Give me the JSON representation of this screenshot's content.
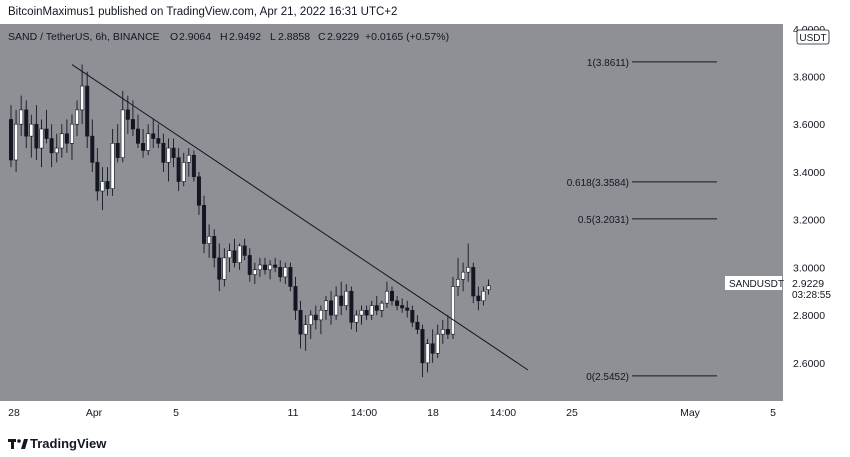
{
  "publish_line": "BitcoinMaximus1 published on TradingView.com, Apr 21, 2022 16:31 UTC+2",
  "footer_brand": "TradingView",
  "colors": {
    "plot_bg": "#8e9096",
    "scale_bg": "#ffffff",
    "candle_up": "#ffffff",
    "candle_down": "#131722",
    "line": "#131722"
  },
  "legend": {
    "symbol": "SAND / TetherUS, 6h, BINANCE",
    "o_label": "O",
    "o_value": "2.9064",
    "h_label": "H",
    "h_value": "2.9492",
    "l_label": "L",
    "l_value": "2.8858",
    "c_label": "C",
    "c_value": "2.9229",
    "change": "+0.0165 (+0.57%)"
  },
  "currency_badge": "USDT",
  "price_tag": {
    "symbol": "SANDUSDT",
    "price": "2.9229",
    "countdown": "03:28:55"
  },
  "chart_data": {
    "type": "candlestick",
    "x_tick_labels": [
      "28",
      "Apr",
      "5",
      "11",
      "14:00",
      "18",
      "14:00",
      "25",
      "May",
      "5"
    ],
    "y_tick_labels": [
      "4.0000",
      "3.8000",
      "3.6000",
      "3.4000",
      "3.2000",
      "3.0000",
      "2.8000",
      "2.6000"
    ],
    "y_ticks": [
      4.0,
      3.8,
      3.6,
      3.4,
      3.2,
      3.0,
      2.8,
      2.6
    ],
    "ylim": [
      2.44,
      4.02
    ],
    "last_price": 2.9229,
    "fib_levels": [
      {
        "label": "1(3.8611)",
        "value": 3.8611
      },
      {
        "label": "0.618(3.3584)",
        "value": 3.3584
      },
      {
        "label": "0.5(3.2031)",
        "value": 3.2031
      },
      {
        "label": "0(2.5452)",
        "value": 2.5452
      }
    ],
    "trendline": {
      "from": {
        "date": "Mar 31 2022",
        "price": 3.85
      },
      "to": {
        "date": "Apr 22 2022",
        "price": 2.57
      }
    },
    "candles": [
      {
        "o": 3.62,
        "h": 3.68,
        "l": 3.42,
        "c": 3.45
      },
      {
        "o": 3.45,
        "h": 3.66,
        "l": 3.4,
        "c": 3.6
      },
      {
        "o": 3.6,
        "h": 3.72,
        "l": 3.55,
        "c": 3.66
      },
      {
        "o": 3.66,
        "h": 3.7,
        "l": 3.5,
        "c": 3.55
      },
      {
        "o": 3.55,
        "h": 3.64,
        "l": 3.46,
        "c": 3.6
      },
      {
        "o": 3.6,
        "h": 3.68,
        "l": 3.45,
        "c": 3.5
      },
      {
        "o": 3.5,
        "h": 3.62,
        "l": 3.42,
        "c": 3.58
      },
      {
        "o": 3.58,
        "h": 3.66,
        "l": 3.52,
        "c": 3.54
      },
      {
        "o": 3.54,
        "h": 3.6,
        "l": 3.42,
        "c": 3.48
      },
      {
        "o": 3.48,
        "h": 3.56,
        "l": 3.44,
        "c": 3.5
      },
      {
        "o": 3.5,
        "h": 3.6,
        "l": 3.46,
        "c": 3.56
      },
      {
        "o": 3.56,
        "h": 3.62,
        "l": 3.48,
        "c": 3.52
      },
      {
        "o": 3.52,
        "h": 3.64,
        "l": 3.45,
        "c": 3.6
      },
      {
        "o": 3.6,
        "h": 3.7,
        "l": 3.55,
        "c": 3.66
      },
      {
        "o": 3.66,
        "h": 3.85,
        "l": 3.6,
        "c": 3.76
      },
      {
        "o": 3.76,
        "h": 3.82,
        "l": 3.5,
        "c": 3.55
      },
      {
        "o": 3.55,
        "h": 3.62,
        "l": 3.4,
        "c": 3.44
      },
      {
        "o": 3.44,
        "h": 3.5,
        "l": 3.28,
        "c": 3.32
      },
      {
        "o": 3.32,
        "h": 3.42,
        "l": 3.24,
        "c": 3.36
      },
      {
        "o": 3.36,
        "h": 3.42,
        "l": 3.3,
        "c": 3.33
      },
      {
        "o": 3.33,
        "h": 3.58,
        "l": 3.3,
        "c": 3.52
      },
      {
        "o": 3.52,
        "h": 3.6,
        "l": 3.44,
        "c": 3.46
      },
      {
        "o": 3.46,
        "h": 3.74,
        "l": 3.44,
        "c": 3.66
      },
      {
        "o": 3.66,
        "h": 3.72,
        "l": 3.56,
        "c": 3.62
      },
      {
        "o": 3.62,
        "h": 3.7,
        "l": 3.55,
        "c": 3.58
      },
      {
        "o": 3.58,
        "h": 3.64,
        "l": 3.5,
        "c": 3.52
      },
      {
        "o": 3.52,
        "h": 3.58,
        "l": 3.46,
        "c": 3.49
      },
      {
        "o": 3.49,
        "h": 3.6,
        "l": 3.47,
        "c": 3.56
      },
      {
        "o": 3.56,
        "h": 3.62,
        "l": 3.5,
        "c": 3.54
      },
      {
        "o": 3.54,
        "h": 3.6,
        "l": 3.5,
        "c": 3.52
      },
      {
        "o": 3.52,
        "h": 3.56,
        "l": 3.4,
        "c": 3.44
      },
      {
        "o": 3.44,
        "h": 3.54,
        "l": 3.36,
        "c": 3.5
      },
      {
        "o": 3.5,
        "h": 3.54,
        "l": 3.42,
        "c": 3.46
      },
      {
        "o": 3.46,
        "h": 3.5,
        "l": 3.32,
        "c": 3.36
      },
      {
        "o": 3.36,
        "h": 3.48,
        "l": 3.34,
        "c": 3.44
      },
      {
        "o": 3.44,
        "h": 3.5,
        "l": 3.38,
        "c": 3.47
      },
      {
        "o": 3.47,
        "h": 3.49,
        "l": 3.36,
        "c": 3.38
      },
      {
        "o": 3.38,
        "h": 3.4,
        "l": 3.22,
        "c": 3.26
      },
      {
        "o": 3.26,
        "h": 3.3,
        "l": 3.06,
        "c": 3.1
      },
      {
        "o": 3.1,
        "h": 3.18,
        "l": 3.04,
        "c": 3.13
      },
      {
        "o": 3.13,
        "h": 3.16,
        "l": 3.0,
        "c": 3.04
      },
      {
        "o": 3.04,
        "h": 3.1,
        "l": 2.9,
        "c": 2.95
      },
      {
        "o": 2.95,
        "h": 3.08,
        "l": 2.92,
        "c": 3.04
      },
      {
        "o": 3.04,
        "h": 3.1,
        "l": 2.98,
        "c": 3.07
      },
      {
        "o": 3.07,
        "h": 3.12,
        "l": 3.0,
        "c": 3.02
      },
      {
        "o": 3.02,
        "h": 3.1,
        "l": 2.99,
        "c": 3.09
      },
      {
        "o": 3.09,
        "h": 3.12,
        "l": 3.03,
        "c": 3.05
      },
      {
        "o": 3.05,
        "h": 3.08,
        "l": 2.94,
        "c": 2.97
      },
      {
        "o": 2.97,
        "h": 3.02,
        "l": 2.93,
        "c": 2.99
      },
      {
        "o": 2.99,
        "h": 3.04,
        "l": 2.96,
        "c": 3.01
      },
      {
        "o": 3.01,
        "h": 3.04,
        "l": 2.97,
        "c": 2.99
      },
      {
        "o": 2.99,
        "h": 3.03,
        "l": 2.95,
        "c": 3.01
      },
      {
        "o": 3.01,
        "h": 3.04,
        "l": 2.98,
        "c": 3.0
      },
      {
        "o": 3.0,
        "h": 3.03,
        "l": 2.94,
        "c": 2.96
      },
      {
        "o": 2.96,
        "h": 3.02,
        "l": 2.93,
        "c": 3.0
      },
      {
        "o": 3.0,
        "h": 3.02,
        "l": 2.9,
        "c": 2.92
      },
      {
        "o": 2.92,
        "h": 2.96,
        "l": 2.78,
        "c": 2.82
      },
      {
        "o": 2.82,
        "h": 2.86,
        "l": 2.66,
        "c": 2.72
      },
      {
        "o": 2.72,
        "h": 2.8,
        "l": 2.65,
        "c": 2.76
      },
      {
        "o": 2.76,
        "h": 2.82,
        "l": 2.7,
        "c": 2.8
      },
      {
        "o": 2.8,
        "h": 2.84,
        "l": 2.74,
        "c": 2.78
      },
      {
        "o": 2.78,
        "h": 2.84,
        "l": 2.72,
        "c": 2.82
      },
      {
        "o": 2.82,
        "h": 2.88,
        "l": 2.78,
        "c": 2.86
      },
      {
        "o": 2.86,
        "h": 2.9,
        "l": 2.76,
        "c": 2.8
      },
      {
        "o": 2.8,
        "h": 2.92,
        "l": 2.78,
        "c": 2.88
      },
      {
        "o": 2.88,
        "h": 2.94,
        "l": 2.8,
        "c": 2.84
      },
      {
        "o": 2.84,
        "h": 2.93,
        "l": 2.82,
        "c": 2.9
      },
      {
        "o": 2.9,
        "h": 2.92,
        "l": 2.74,
        "c": 2.77
      },
      {
        "o": 2.77,
        "h": 2.82,
        "l": 2.73,
        "c": 2.8
      },
      {
        "o": 2.8,
        "h": 2.84,
        "l": 2.76,
        "c": 2.82
      },
      {
        "o": 2.82,
        "h": 2.84,
        "l": 2.78,
        "c": 2.8
      },
      {
        "o": 2.8,
        "h": 2.86,
        "l": 2.78,
        "c": 2.84
      },
      {
        "o": 2.84,
        "h": 2.88,
        "l": 2.8,
        "c": 2.82
      },
      {
        "o": 2.82,
        "h": 2.86,
        "l": 2.79,
        "c": 2.85
      },
      {
        "o": 2.85,
        "h": 2.94,
        "l": 2.83,
        "c": 2.9
      },
      {
        "o": 2.9,
        "h": 2.92,
        "l": 2.84,
        "c": 2.86
      },
      {
        "o": 2.86,
        "h": 2.88,
        "l": 2.82,
        "c": 2.84
      },
      {
        "o": 2.84,
        "h": 2.87,
        "l": 2.81,
        "c": 2.83
      },
      {
        "o": 2.83,
        "h": 2.86,
        "l": 2.79,
        "c": 2.82
      },
      {
        "o": 2.82,
        "h": 2.84,
        "l": 2.75,
        "c": 2.77
      },
      {
        "o": 2.77,
        "h": 2.8,
        "l": 2.72,
        "c": 2.74
      },
      {
        "o": 2.74,
        "h": 2.76,
        "l": 2.54,
        "c": 2.6
      },
      {
        "o": 2.6,
        "h": 2.7,
        "l": 2.56,
        "c": 2.68
      },
      {
        "o": 2.68,
        "h": 2.74,
        "l": 2.6,
        "c": 2.64
      },
      {
        "o": 2.64,
        "h": 2.76,
        "l": 2.62,
        "c": 2.72
      },
      {
        "o": 2.72,
        "h": 2.78,
        "l": 2.68,
        "c": 2.74
      },
      {
        "o": 2.74,
        "h": 2.8,
        "l": 2.7,
        "c": 2.72
      },
      {
        "o": 2.72,
        "h": 2.96,
        "l": 2.7,
        "c": 2.92
      },
      {
        "o": 2.92,
        "h": 3.04,
        "l": 2.88,
        "c": 2.95
      },
      {
        "o": 2.95,
        "h": 3.02,
        "l": 2.9,
        "c": 2.98
      },
      {
        "o": 2.98,
        "h": 3.1,
        "l": 2.94,
        "c": 3.0
      },
      {
        "o": 3.0,
        "h": 3.02,
        "l": 2.85,
        "c": 2.88
      },
      {
        "o": 2.88,
        "h": 2.92,
        "l": 2.82,
        "c": 2.86
      },
      {
        "o": 2.86,
        "h": 2.92,
        "l": 2.84,
        "c": 2.9
      },
      {
        "o": 2.9064,
        "h": 2.9492,
        "l": 2.8858,
        "c": 2.9229
      }
    ]
  }
}
